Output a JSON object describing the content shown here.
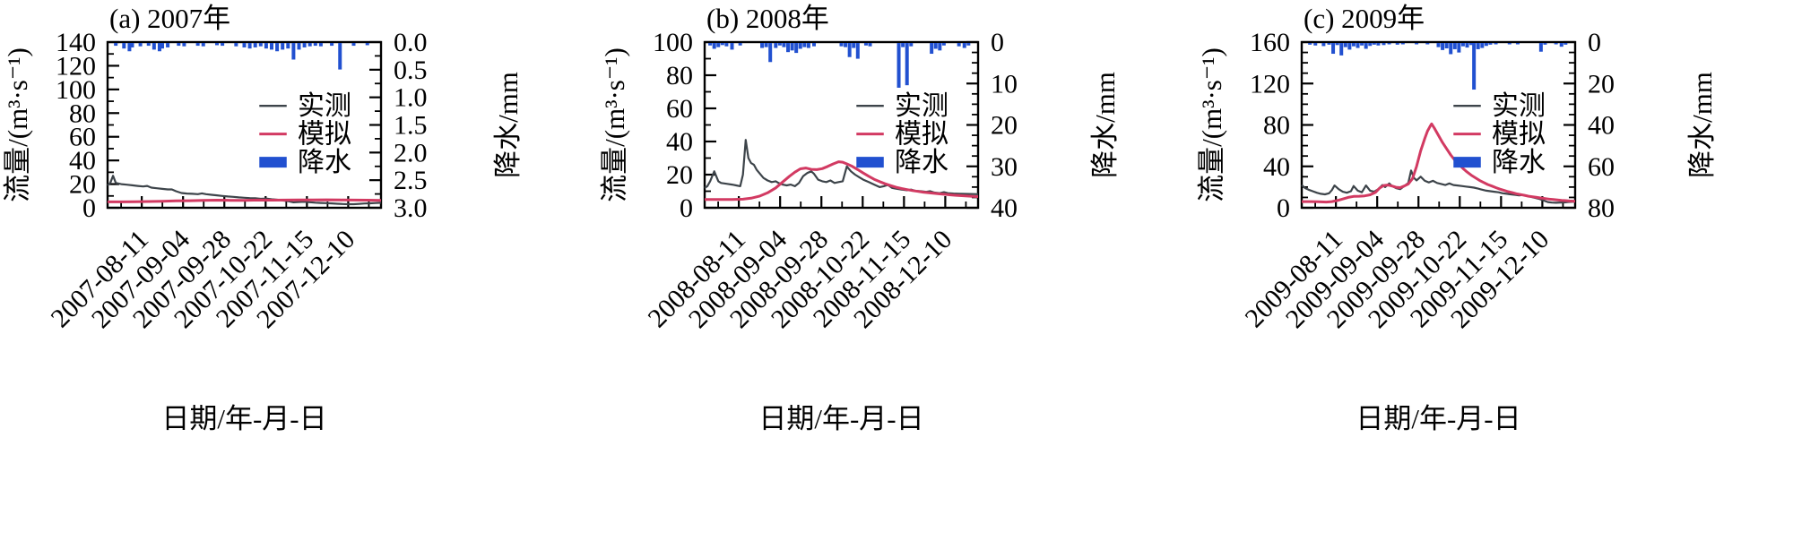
{
  "figure": {
    "colors": {
      "observed": "#3d444a",
      "simulated": "#d23a62",
      "precipitation": "#2150d0",
      "axis": "#000000"
    }
  },
  "chart_data": [
    {
      "type": "line+bar",
      "title": "(a) 2007年",
      "xlabel": "日期/年-月-日",
      "ylabel_left": "流量/(m³·s⁻¹)",
      "ylabel_right": "降水/mm",
      "legend_position": "center-right",
      "grid": false,
      "x_tick_labels": [
        "2007-08-11",
        "2007-09-04",
        "2007-09-28",
        "2007-10-22",
        "2007-11-15",
        "2007-12-10"
      ],
      "flow_axis": {
        "min": 0,
        "max": 140,
        "tick_labels": [
          "0",
          "20",
          "40",
          "60",
          "80",
          "100",
          "120",
          "140"
        ],
        "minor_step": 10
      },
      "precip_axis": {
        "min": 0,
        "max": 3,
        "reversed": true,
        "tick_labels": [
          "0.0",
          "0.5",
          "1.0",
          "1.5",
          "2.0",
          "2.5",
          "3.0"
        ],
        "minor_step": 0.25
      },
      "series": [
        {
          "name": "实测",
          "color_key": "observed",
          "x": [
            0,
            0.01,
            0.02,
            0.03,
            0.05,
            0.07,
            0.09,
            0.11,
            0.13,
            0.145,
            0.16,
            0.18,
            0.2,
            0.22,
            0.235,
            0.25,
            0.27,
            0.29,
            0.31,
            0.33,
            0.345,
            0.36,
            0.38,
            0.4,
            0.42,
            0.44,
            0.46,
            0.48,
            0.5,
            0.52,
            0.54,
            0.56,
            0.58,
            0.6,
            0.62,
            0.64,
            0.66,
            0.68,
            0.7,
            0.72,
            0.74,
            0.76,
            0.78,
            0.8,
            0.82,
            0.84,
            0.86,
            0.88,
            0.9,
            0.92,
            0.94,
            0.96,
            0.98,
            1
          ],
          "values": [
            19,
            21,
            27,
            21,
            20,
            19.5,
            19,
            18.5,
            18,
            18.5,
            17,
            16.5,
            16,
            15.5,
            15.5,
            14,
            12.5,
            12,
            11.8,
            11.5,
            12.2,
            11.5,
            11,
            10.5,
            10,
            9.5,
            9.2,
            8.8,
            8.5,
            8.2,
            8,
            7.6,
            7.8,
            7.2,
            6.8,
            6.2,
            5.6,
            4.6,
            4.9,
            5.1,
            4.7,
            4.3,
            4.1,
            3.9,
            3.7,
            3.4,
            3.2,
            3,
            3,
            3.3,
            3.6,
            3.8,
            4,
            4.2
          ]
        },
        {
          "name": "模拟",
          "color_key": "simulated",
          "x": [
            0,
            0.05,
            0.1,
            0.15,
            0.2,
            0.25,
            0.3,
            0.35,
            0.4,
            0.45,
            0.5,
            0.55,
            0.6,
            0.65,
            0.7,
            0.75,
            0.8,
            0.85,
            0.9,
            0.95,
            1
          ],
          "values": [
            5,
            5,
            5.1,
            5.3,
            5.5,
            5.8,
            6,
            6.2,
            6.4,
            6.3,
            6.3,
            6.5,
            6.4,
            6.5,
            6.6,
            6.6,
            6.7,
            6.6,
            6.5,
            6.4,
            6.3
          ]
        }
      ],
      "precipitation": {
        "name": "降水",
        "x": [
          0.03,
          0.06,
          0.08,
          0.09,
          0.12,
          0.15,
          0.17,
          0.19,
          0.2,
          0.22,
          0.26,
          0.28,
          0.33,
          0.35,
          0.4,
          0.42,
          0.47,
          0.5,
          0.52,
          0.54,
          0.56,
          0.58,
          0.6,
          0.62,
          0.64,
          0.66,
          0.68,
          0.7,
          0.72,
          0.74,
          0.76,
          0.78,
          0.82,
          0.85,
          0.9,
          0.95
        ],
        "values": [
          0.05,
          0.1,
          0.15,
          0.08,
          0.06,
          0.05,
          0.12,
          0.15,
          0.1,
          0.08,
          0.05,
          0.06,
          0.05,
          0.06,
          0.04,
          0.05,
          0.06,
          0.08,
          0.1,
          0.08,
          0.06,
          0.1,
          0.12,
          0.15,
          0.12,
          0.1,
          0.3,
          0.12,
          0.08,
          0.06,
          0.05,
          0.06,
          0.05,
          0.48,
          0.05,
          0.04
        ]
      }
    },
    {
      "type": "line+bar",
      "title": "(b) 2008年",
      "xlabel": "日期/年-月-日",
      "ylabel_left": "流量/(m³·s⁻¹)",
      "ylabel_right": "降水/mm",
      "legend_position": "center-right",
      "grid": false,
      "x_tick_labels": [
        "2008-08-11",
        "2008-09-04",
        "2008-09-28",
        "2008-10-22",
        "2008-11-15",
        "2008-12-10"
      ],
      "flow_axis": {
        "min": 0,
        "max": 100,
        "tick_labels": [
          "0",
          "20",
          "40",
          "60",
          "80",
          "100"
        ],
        "minor_step": 10
      },
      "precip_axis": {
        "min": 0,
        "max": 40,
        "reversed": true,
        "tick_labels": [
          "0",
          "10",
          "20",
          "30",
          "40"
        ],
        "minor_step": 2.5
      },
      "series": [
        {
          "name": "实测",
          "color_key": "observed",
          "x": [
            0,
            0.01,
            0.02,
            0.035,
            0.05,
            0.06,
            0.08,
            0.1,
            0.115,
            0.13,
            0.14,
            0.15,
            0.16,
            0.17,
            0.18,
            0.19,
            0.2,
            0.215,
            0.23,
            0.245,
            0.26,
            0.27,
            0.285,
            0.3,
            0.315,
            0.33,
            0.345,
            0.36,
            0.375,
            0.39,
            0.4,
            0.415,
            0.43,
            0.445,
            0.46,
            0.475,
            0.49,
            0.505,
            0.52,
            0.535,
            0.55,
            0.565,
            0.58,
            0.6,
            0.62,
            0.64,
            0.655,
            0.67,
            0.685,
            0.7,
            0.72,
            0.74,
            0.755,
            0.77,
            0.79,
            0.81,
            0.825,
            0.84,
            0.86,
            0.875,
            0.89,
            0.91,
            0.93,
            0.95,
            0.97,
            1
          ],
          "values": [
            12,
            13,
            16,
            22,
            16,
            15,
            14.5,
            14,
            13.5,
            13,
            20,
            41,
            30,
            27,
            26,
            23,
            21,
            18,
            16.5,
            15.5,
            16,
            15,
            14,
            13.5,
            14,
            13,
            15,
            19,
            21,
            22,
            20.5,
            17,
            16,
            15.5,
            16.5,
            15,
            15.5,
            16,
            25,
            22,
            20,
            18.5,
            17,
            15.5,
            14,
            12.5,
            13,
            13.8,
            12,
            11.5,
            11,
            10.6,
            11,
            10.2,
            10,
            9.6,
            10,
            9.2,
            8.8,
            9.4,
            8.8,
            8.6,
            8.5,
            8.4,
            8.3,
            8.2
          ]
        },
        {
          "name": "模拟",
          "color_key": "simulated",
          "x": [
            0,
            0.05,
            0.1,
            0.14,
            0.17,
            0.2,
            0.23,
            0.26,
            0.285,
            0.31,
            0.33,
            0.35,
            0.37,
            0.39,
            0.41,
            0.43,
            0.45,
            0.47,
            0.49,
            0.505,
            0.52,
            0.54,
            0.56,
            0.58,
            0.6,
            0.62,
            0.64,
            0.66,
            0.68,
            0.7,
            0.72,
            0.74,
            0.76,
            0.78,
            0.8,
            0.82,
            0.84,
            0.86,
            0.88,
            0.9,
            0.92,
            0.94,
            0.96,
            0.98,
            1
          ],
          "values": [
            5,
            5,
            5,
            5.2,
            5.8,
            7,
            9,
            12,
            15.5,
            19,
            21.5,
            23.5,
            24,
            23.2,
            23,
            23.6,
            25,
            26.5,
            27.8,
            27.5,
            26.5,
            25,
            23,
            21,
            19,
            17.2,
            15.8,
            14.5,
            13.4,
            12.4,
            11.6,
            11,
            10.4,
            9.9,
            9.4,
            9,
            8.7,
            8.4,
            8.1,
            7.8,
            7.5,
            7.3,
            7.1,
            6.9,
            6.7
          ]
        }
      ],
      "precipitation": {
        "name": "降水",
        "x": [
          0.02,
          0.035,
          0.05,
          0.065,
          0.08,
          0.1,
          0.13,
          0.21,
          0.225,
          0.24,
          0.26,
          0.275,
          0.29,
          0.305,
          0.32,
          0.335,
          0.35,
          0.365,
          0.38,
          0.4,
          0.5,
          0.515,
          0.53,
          0.545,
          0.56,
          0.59,
          0.605,
          0.71,
          0.725,
          0.74,
          0.755,
          0.83,
          0.845,
          0.86,
          0.875,
          0.93,
          0.95,
          0.965
        ],
        "values": [
          0.6,
          1.4,
          1,
          0.5,
          0.8,
          1.6,
          0.6,
          1.2,
          1,
          4.6,
          1.2,
          0.6,
          1,
          2.2,
          1.8,
          2.4,
          1.4,
          1,
          1.2,
          0.8,
          0.8,
          1,
          3.4,
          1.2,
          3.8,
          0.6,
          0.8,
          10.8,
          1,
          10.2,
          0.8,
          2.6,
          1.4,
          1.8,
          0.6,
          0.8,
          1.2,
          0.6
        ]
      }
    },
    {
      "type": "line+bar",
      "title": "(c) 2009年",
      "xlabel": "日期/年-月-日",
      "ylabel_left": "流量/(m³·s⁻¹)",
      "ylabel_right": "降水/mm",
      "legend_position": "center-right",
      "grid": false,
      "x_tick_labels": [
        "2009-08-11",
        "2009-09-04",
        "2009-09-28",
        "2009-10-22",
        "2009-11-15",
        "2009-12-10"
      ],
      "flow_axis": {
        "min": 0,
        "max": 160,
        "tick_labels": [
          "0",
          "40",
          "80",
          "120",
          "160"
        ],
        "minor_step": 10
      },
      "precip_axis": {
        "min": 0,
        "max": 80,
        "reversed": true,
        "tick_labels": [
          "0",
          "20",
          "40",
          "60",
          "80"
        ],
        "minor_step": 5
      },
      "series": [
        {
          "name": "实测",
          "color_key": "observed",
          "x": [
            0,
            0.012,
            0.025,
            0.04,
            0.055,
            0.07,
            0.085,
            0.1,
            0.11,
            0.12,
            0.135,
            0.15,
            0.165,
            0.18,
            0.19,
            0.205,
            0.22,
            0.235,
            0.25,
            0.265,
            0.28,
            0.295,
            0.305,
            0.32,
            0.33,
            0.345,
            0.36,
            0.375,
            0.39,
            0.4,
            0.41,
            0.42,
            0.435,
            0.45,
            0.465,
            0.48,
            0.495,
            0.51,
            0.525,
            0.54,
            0.555,
            0.57,
            0.585,
            0.6,
            0.615,
            0.63,
            0.645,
            0.66,
            0.675,
            0.69,
            0.705,
            0.72,
            0.735,
            0.75,
            0.765,
            0.78,
            0.795,
            0.81,
            0.825,
            0.84,
            0.855,
            0.87,
            0.885,
            0.9,
            0.915,
            0.93,
            0.945,
            0.96,
            0.975,
            1
          ],
          "values": [
            22,
            19,
            17.5,
            16,
            14.5,
            13.5,
            13,
            14,
            17,
            21.5,
            18,
            15.5,
            14.5,
            16,
            21,
            16.5,
            15,
            21.5,
            16.5,
            15.5,
            18,
            22,
            20,
            23.5,
            21,
            19,
            18,
            21,
            24,
            36,
            29,
            26.5,
            30,
            26,
            24.5,
            26,
            24,
            23,
            22,
            23.5,
            22,
            21.5,
            21,
            20.5,
            20,
            19.5,
            18.5,
            17.5,
            16.5,
            16,
            15.5,
            15,
            14,
            13.5,
            13,
            12.5,
            12,
            12.4,
            11.5,
            10.5,
            9.5,
            8.5,
            7,
            5.5,
            5,
            4.8,
            5,
            5.2,
            5.6,
            6
          ]
        },
        {
          "name": "模拟",
          "color_key": "simulated",
          "x": [
            0,
            0.03,
            0.06,
            0.09,
            0.11,
            0.13,
            0.15,
            0.17,
            0.19,
            0.21,
            0.23,
            0.25,
            0.27,
            0.285,
            0.3,
            0.315,
            0.33,
            0.345,
            0.36,
            0.375,
            0.39,
            0.405,
            0.42,
            0.435,
            0.45,
            0.46,
            0.47,
            0.475,
            0.485,
            0.5,
            0.515,
            0.53,
            0.545,
            0.56,
            0.575,
            0.59,
            0.605,
            0.62,
            0.635,
            0.65,
            0.665,
            0.68,
            0.695,
            0.71,
            0.725,
            0.74,
            0.755,
            0.77,
            0.785,
            0.8,
            0.815,
            0.83,
            0.845,
            0.86,
            0.875,
            0.89,
            0.905,
            0.92,
            0.935,
            0.95,
            0.965,
            0.98,
            1
          ],
          "values": [
            6,
            6,
            5.8,
            5.5,
            6,
            7,
            8.5,
            10,
            11,
            11.2,
            11.5,
            12.5,
            15,
            19,
            21.5,
            22,
            21,
            19.8,
            19.5,
            21,
            23,
            28,
            40,
            55,
            67,
            74,
            79,
            81,
            77,
            70,
            63,
            57,
            51,
            46,
            42,
            38,
            34.5,
            31.5,
            29,
            26.5,
            24.5,
            22.5,
            21,
            19.5,
            18,
            16.8,
            15.6,
            14.6,
            13.6,
            12.8,
            12,
            11.2,
            10.6,
            10,
            9.4,
            8.9,
            8.4,
            8,
            7.6,
            7.2,
            6.9,
            6.6,
            6.3
          ]
        }
      ],
      "precipitation": {
        "name": "降水",
        "x": [
          0.03,
          0.05,
          0.08,
          0.1,
          0.115,
          0.13,
          0.145,
          0.16,
          0.175,
          0.19,
          0.205,
          0.22,
          0.235,
          0.25,
          0.265,
          0.28,
          0.3,
          0.32,
          0.35,
          0.37,
          0.42,
          0.46,
          0.5,
          0.515,
          0.53,
          0.545,
          0.56,
          0.575,
          0.59,
          0.605,
          0.62,
          0.63,
          0.645,
          0.66,
          0.675,
          0.69,
          0.71,
          0.76,
          0.79,
          0.875,
          0.89,
          0.93,
          0.95,
          0.965
        ],
        "values": [
          0.8,
          1.2,
          1.5,
          0.8,
          5.2,
          1,
          6,
          2,
          3.2,
          1.6,
          2.4,
          1.2,
          2.8,
          1.4,
          0.8,
          1.2,
          1,
          0.6,
          0.8,
          0.6,
          0.5,
          0.6,
          2,
          3.4,
          2.6,
          5.4,
          3,
          4.6,
          1.6,
          2.2,
          1,
          22.5,
          3,
          2.4,
          1.4,
          0.8,
          0.6,
          0.5,
          0.6,
          4.2,
          0.8,
          0.6,
          1.8,
          0.8
        ]
      }
    }
  ]
}
